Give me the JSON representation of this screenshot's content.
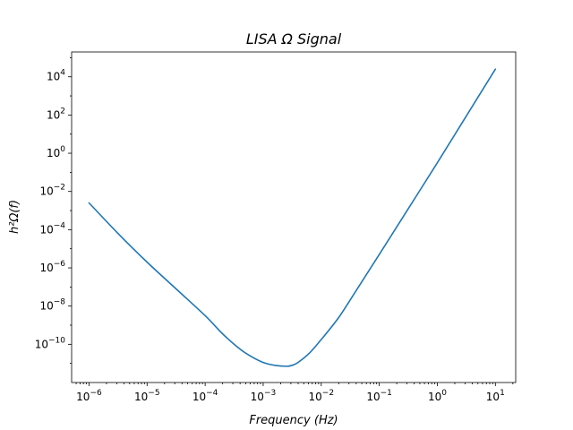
{
  "chart_data": {
    "type": "line",
    "title": "LISA Ω Signal",
    "xlabel": "Frequency  (Hz)",
    "ylabel": "h²Ω(f)",
    "xscale": "log",
    "yscale": "log",
    "xlim_exp": [
      -6.3,
      1.35
    ],
    "ylim_exp": [
      -12.0,
      5.3
    ],
    "x_ticks": [
      {
        "base": "10",
        "exp": "−6",
        "value_exp": -6
      },
      {
        "base": "10",
        "exp": "−5",
        "value_exp": -5
      },
      {
        "base": "10",
        "exp": "−4",
        "value_exp": -4
      },
      {
        "base": "10",
        "exp": "−3",
        "value_exp": -3
      },
      {
        "base": "10",
        "exp": "−2",
        "value_exp": -2
      },
      {
        "base": "10",
        "exp": "−1",
        "value_exp": -1
      },
      {
        "base": "10",
        "exp": "0",
        "value_exp": 0
      },
      {
        "base": "10",
        "exp": "1",
        "value_exp": 1
      }
    ],
    "y_ticks": [
      {
        "base": "10",
        "exp": "−10",
        "value_exp": -10
      },
      {
        "base": "10",
        "exp": "−8",
        "value_exp": -8
      },
      {
        "base": "10",
        "exp": "−6",
        "value_exp": -6
      },
      {
        "base": "10",
        "exp": "−4",
        "value_exp": -4
      },
      {
        "base": "10",
        "exp": "−2",
        "value_exp": -2
      },
      {
        "base": "10",
        "exp": "0",
        "value_exp": 0
      },
      {
        "base": "10",
        "exp": "2",
        "value_exp": 2
      },
      {
        "base": "10",
        "exp": "4",
        "value_exp": 4
      }
    ],
    "series": [
      {
        "name": "LISA Ω signal",
        "color": "#1f77b4",
        "log10_x": [
          -6.0,
          -5.5,
          -5.0,
          -4.5,
          -4.0,
          -3.7,
          -3.4,
          -3.2,
          -3.0,
          -2.8,
          -2.6,
          -2.5,
          -2.4,
          -2.2,
          -2.0,
          -1.7,
          -1.4,
          -1.0,
          -0.5,
          0.0,
          0.5,
          1.0
        ],
        "log10_y": [
          -2.6,
          -4.2,
          -5.7,
          -7.1,
          -8.5,
          -9.45,
          -10.25,
          -10.65,
          -10.95,
          -11.1,
          -11.15,
          -11.1,
          -10.95,
          -10.45,
          -9.75,
          -8.6,
          -7.2,
          -5.3,
          -2.9,
          -0.5,
          1.95,
          4.4
        ]
      }
    ]
  }
}
